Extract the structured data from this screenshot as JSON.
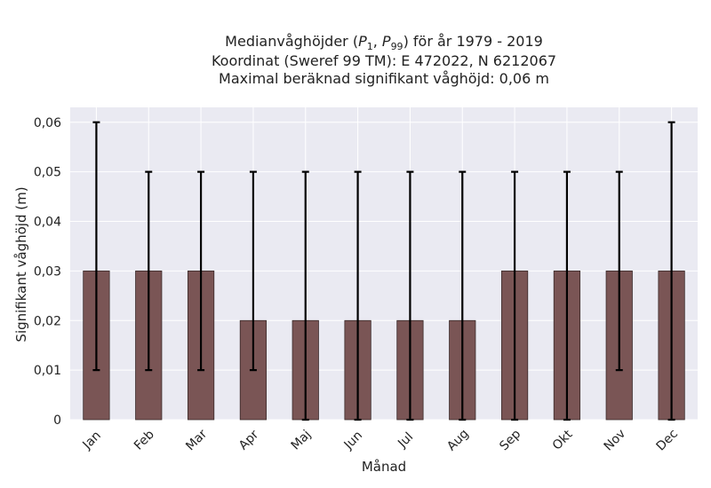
{
  "chart_data": {
    "type": "bar",
    "title_lines": [
      "Medianvåghöjder (P1, P99) för år 1979 - 2019",
      "Koordinat (Sweref 99 TM): E 472022, N 6212067",
      "Maximal beräknad signifikant våghöjd: 0,06 m"
    ],
    "xlabel": "Månad",
    "ylabel": "Signifikant våghöjd (m)",
    "categories": [
      "Jan",
      "Feb",
      "Mar",
      "Apr",
      "Maj",
      "Jun",
      "Jul",
      "Aug",
      "Sep",
      "Okt",
      "Nov",
      "Dec"
    ],
    "values": [
      0.03,
      0.03,
      0.03,
      0.02,
      0.02,
      0.02,
      0.02,
      0.02,
      0.03,
      0.03,
      0.03,
      0.03
    ],
    "error_low": [
      0.01,
      0.01,
      0.01,
      0.01,
      0.0,
      0.0,
      0.0,
      0.0,
      0.0,
      0.0,
      0.01,
      0.0
    ],
    "error_high": [
      0.06,
      0.05,
      0.05,
      0.05,
      0.05,
      0.05,
      0.05,
      0.05,
      0.05,
      0.05,
      0.05,
      0.06
    ],
    "ylim": [
      0,
      0.063
    ],
    "yticks": [
      0,
      0.01,
      0.02,
      0.03,
      0.04,
      0.05,
      0.06
    ],
    "ytick_labels": [
      "0",
      "0,01",
      "0,02",
      "0,03",
      "0,04",
      "0,05",
      "0,06"
    ],
    "grid": true,
    "bar_color": "#7a5555",
    "background_color": "#eaeaf2"
  }
}
